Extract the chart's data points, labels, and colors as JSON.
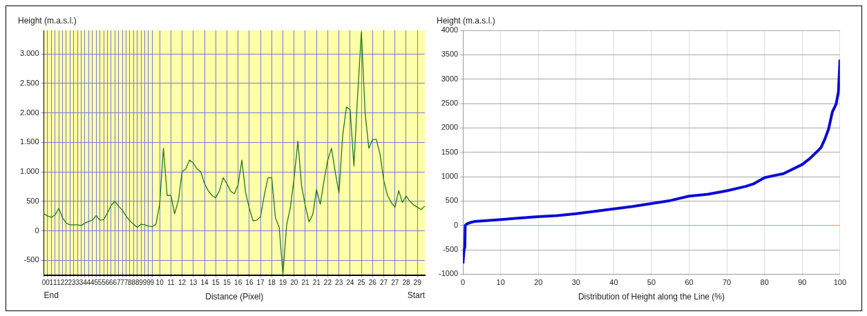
{
  "chart_data": [
    {
      "type": "line",
      "xlabel": "Distance (Pixel)",
      "ylabel": "Height (m.a.s.l.)",
      "annotations": [
        "End",
        "Start"
      ],
      "categories": [
        "0",
        "0",
        "1",
        "1",
        "1",
        "2",
        "2",
        "2",
        "3",
        "3",
        "3",
        "4",
        "4",
        "4",
        "5",
        "5",
        "5",
        "6",
        "6",
        "6",
        "7",
        "7",
        "7",
        "8",
        "8",
        "8",
        "9",
        "9",
        "9",
        "9",
        null,
        "10",
        null,
        null,
        "11",
        null,
        null,
        "12",
        null,
        null,
        "13",
        null,
        null,
        "14",
        null,
        null,
        "15",
        null,
        null,
        "15",
        null,
        null,
        "16",
        null,
        null,
        "16",
        null,
        null,
        "17",
        null,
        null,
        "18",
        null,
        null,
        "19",
        null,
        null,
        "20",
        null,
        null,
        "21",
        null,
        null,
        "21",
        null,
        null,
        "22",
        null,
        null,
        "23",
        null,
        null,
        "24",
        null,
        null,
        "25",
        null,
        null,
        "26",
        null,
        null,
        "27",
        null,
        null,
        "27",
        null,
        null,
        "28",
        null,
        null,
        "29",
        null,
        null
      ],
      "series": [
        {
          "color": "#1e7a1e",
          "values": [
            290,
            250,
            230,
            270,
            380,
            220,
            130,
            100,
            100,
            100,
            90,
            130,
            160,
            180,
            260,
            180,
            190,
            300,
            430,
            500,
            420,
            350,
            250,
            170,
            110,
            60,
            110,
            100,
            80,
            70,
            110,
            450,
            1400,
            600,
            600,
            290,
            510,
            1000,
            1050,
            1200,
            1150,
            1050,
            1000,
            800,
            680,
            600,
            560,
            680,
            900,
            800,
            670,
            630,
            780,
            1200,
            650,
            380,
            170,
            180,
            240,
            600,
            900,
            900,
            220,
            60,
            -740,
            100,
            400,
            900,
            1520,
            760,
            420,
            150,
            280,
            700,
            450,
            850,
            1200,
            1400,
            1000,
            640,
            1620,
            2100,
            2050,
            1100,
            2300,
            3370,
            2000,
            1400,
            1550,
            1550,
            1300,
            850,
            600,
            480,
            400,
            680,
            480,
            590,
            500,
            440,
            400,
            360,
            420
          ]
        }
      ],
      "ylim": [
        -750,
        3400
      ],
      "yticks": [
        {
          "value": -500,
          "label": "-500"
        },
        0,
        500,
        {
          "value": 1000,
          "label": "1.000"
        },
        {
          "value": 1500,
          "label": "1.500"
        },
        {
          "value": 2000,
          "label": "2.000"
        },
        {
          "value": 2500,
          "label": "2.500"
        },
        {
          "value": 3000,
          "label": "3.000"
        }
      ],
      "grid": true,
      "marker": "none",
      "legend": false
    },
    {
      "type": "line",
      "xlabel": "Distribution of Height along the Line (%)",
      "ylabel": "Height (m.a.s.l.)",
      "x": [
        0,
        0.3,
        0.5,
        0.6,
        1,
        2,
        3,
        5,
        10,
        15,
        20,
        25,
        30,
        35,
        40,
        45,
        50,
        55,
        60,
        65,
        70,
        75,
        77,
        80,
        83,
        85,
        90,
        92,
        94,
        95,
        96,
        97,
        98,
        99,
        99.6,
        100
      ],
      "series": [
        {
          "color": "#0a0ad8",
          "values": [
            -780,
            -500,
            -450,
            0,
            30,
            60,
            80,
            90,
            120,
            150,
            180,
            200,
            240,
            290,
            340,
            390,
            450,
            510,
            600,
            640,
            710,
            800,
            850,
            980,
            1030,
            1060,
            1250,
            1370,
            1520,
            1600,
            1770,
            1980,
            2330,
            2490,
            2740,
            3400
          ]
        }
      ],
      "xlim": [
        0,
        100
      ],
      "xticks": [
        0,
        10,
        20,
        30,
        40,
        50,
        60,
        70,
        80,
        90,
        100
      ],
      "ylim": [
        -1000,
        4000
      ],
      "yticks": [
        -1000,
        -500,
        0,
        500,
        1000,
        1500,
        2000,
        2500,
        3000,
        3500,
        4000
      ],
      "ref_lines": [
        {
          "axis": "y",
          "value": 0,
          "color": "#f0a060"
        }
      ],
      "grid": true,
      "marker": "none",
      "legend": false
    }
  ]
}
